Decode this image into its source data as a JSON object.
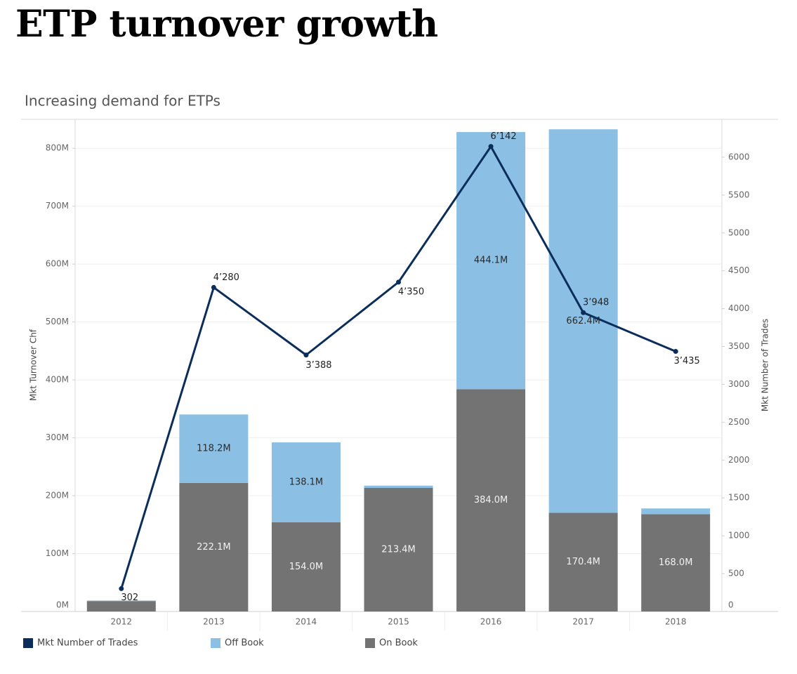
{
  "page_title": "ETP turnover growth",
  "chart_data": {
    "type": "bar",
    "title": "Increasing demand for ETPs",
    "categories": [
      "2012",
      "2013",
      "2014",
      "2015",
      "2016",
      "2017",
      "2018"
    ],
    "series": [
      {
        "name": "On Book",
        "kind": "bar",
        "stack": "turnover",
        "axis": "left",
        "color": "#737373",
        "values": [
          18,
          222.1,
          154.0,
          213.4,
          384.0,
          170.4,
          168.0
        ],
        "labels": [
          "",
          "222.1M",
          "154.0M",
          "213.4M",
          "384.0M",
          "170.4M",
          "168.0M"
        ]
      },
      {
        "name": "Off Book",
        "kind": "bar",
        "stack": "turnover",
        "axis": "left",
        "color": "#8bbfe3",
        "values": [
          1,
          118.2,
          138.1,
          4,
          444.1,
          662.4,
          10
        ],
        "labels": [
          "",
          "118.2M",
          "138.1M",
          "",
          "444.1M",
          "662.4M",
          ""
        ]
      },
      {
        "name": "Mkt Number of Trades",
        "kind": "line",
        "axis": "right",
        "color": "#0b2d5b",
        "values": [
          302,
          4280,
          3388,
          4350,
          6142,
          3948,
          3435
        ],
        "labels": [
          "302",
          "4’280",
          "3’388",
          "4’350",
          "6’142",
          "3’948",
          "3’435"
        ]
      }
    ],
    "y_left": {
      "label": "Mkt Turnover Chf",
      "range": [
        0,
        850
      ],
      "ticks": [
        0,
        100,
        200,
        300,
        400,
        500,
        600,
        700,
        800
      ],
      "tick_labels": [
        "0M",
        "100M",
        "200M",
        "300M",
        "400M",
        "500M",
        "600M",
        "700M",
        "800M"
      ]
    },
    "y_right": {
      "label": "Mkt Number of Trades",
      "range": [
        0,
        6500
      ],
      "ticks": [
        0,
        500,
        1000,
        1500,
        2000,
        2500,
        3000,
        3500,
        4000,
        4500,
        5000,
        5500,
        6000
      ],
      "tick_labels": [
        "0",
        "500",
        "1000",
        "1500",
        "2000",
        "2500",
        "3000",
        "3500",
        "4000",
        "4500",
        "5000",
        "5500",
        "6000"
      ]
    },
    "legend": [
      {
        "name": "Mkt Number of Trades",
        "color": "#0b2d5b"
      },
      {
        "name": "Off Book",
        "color": "#8bbfe3"
      },
      {
        "name": "On Book",
        "color": "#737373"
      }
    ],
    "legend_position": "bottom",
    "grid": true
  }
}
